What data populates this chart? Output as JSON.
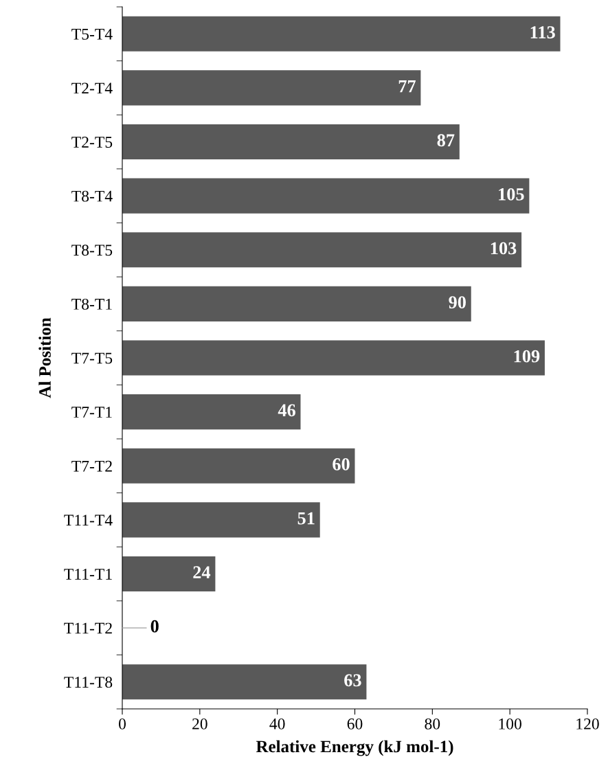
{
  "chart_data": {
    "type": "bar",
    "orientation": "horizontal",
    "categories": [
      "T5-T4",
      "T2-T4",
      "T2-T5",
      "T8-T4",
      "T8-T5",
      "T8-T1",
      "T7-T5",
      "T7-T1",
      "T7-T2",
      "T11-T4",
      "T11-T1",
      "T11-T2",
      "T11-T8"
    ],
    "values": [
      113,
      77,
      87,
      105,
      103,
      90,
      109,
      46,
      60,
      51,
      24,
      0,
      63
    ],
    "color": "#595959",
    "xlim": [
      0,
      120
    ],
    "xticks": [
      0,
      20,
      40,
      60,
      80,
      100,
      120
    ],
    "xlabel": "Relative Energy (kJ mol-1)",
    "ylabel": "Al Position",
    "data_labels": true,
    "grid": false,
    "legend": false
  }
}
